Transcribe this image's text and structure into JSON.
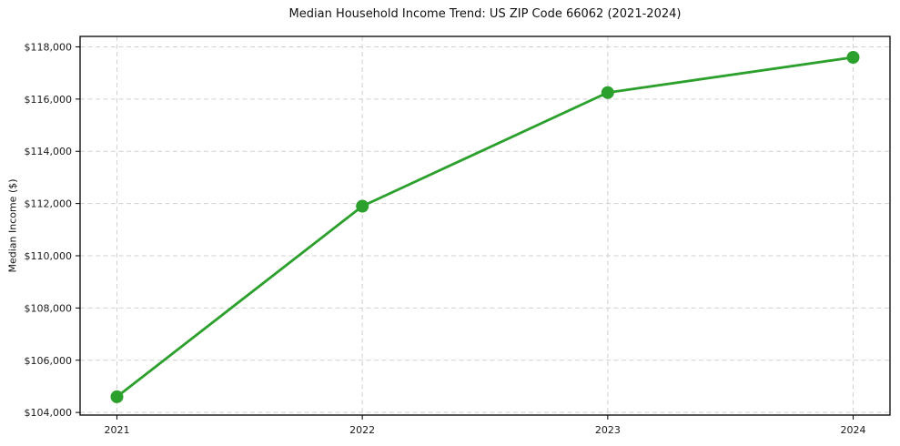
{
  "title": "Median Household Income Trend: US ZIP Code 66062 (2021-2024)",
  "colors": {
    "line": "#2ca02c",
    "marker": "#2ca02c",
    "grid": "#d0d0d0",
    "spine": "#000000",
    "tick": "#000000",
    "tick_label": "#1a1a1a",
    "background": "#ffffff"
  },
  "chart_data": {
    "type": "line",
    "title": "Median Household Income Trend: US ZIP Code 66062 (2021-2024)",
    "xlabel": "",
    "ylabel": "Median Income ($)",
    "x": [
      2021,
      2022,
      2023,
      2024
    ],
    "series": [
      {
        "name": "Median Household Income",
        "values": [
          104600,
          111900,
          116250,
          117600
        ]
      }
    ],
    "xticks": [
      {
        "value": 2021,
        "label": "2021"
      },
      {
        "value": 2022,
        "label": "2022"
      },
      {
        "value": 2023,
        "label": "2023"
      },
      {
        "value": 2024,
        "label": "2024"
      }
    ],
    "yticks": [
      {
        "value": 104000,
        "label": "$104,000"
      },
      {
        "value": 106000,
        "label": "$106,000"
      },
      {
        "value": 108000,
        "label": "$108,000"
      },
      {
        "value": 110000,
        "label": "$110,000"
      },
      {
        "value": 112000,
        "label": "$112,000"
      },
      {
        "value": 114000,
        "label": "$114,000"
      },
      {
        "value": 116000,
        "label": "$116,000"
      },
      {
        "value": 118000,
        "label": "$118,000"
      }
    ],
    "xlim": [
      2020.85,
      2024.15
    ],
    "ylim": [
      103900,
      118400
    ],
    "grid": true,
    "grid_style": "dashed",
    "legend": false,
    "line_width": 2.8,
    "marker": "circle",
    "marker_radius": 7
  }
}
